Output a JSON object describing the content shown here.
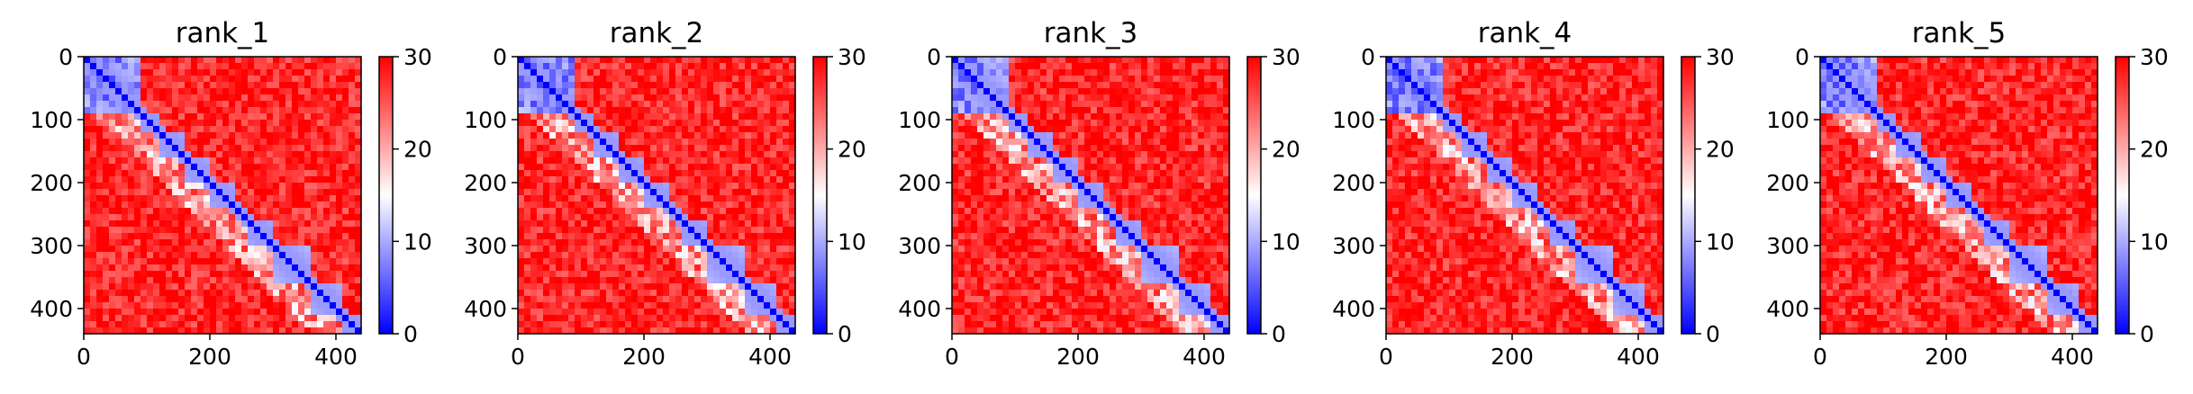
{
  "chart_data": [
    {
      "type": "heatmap",
      "title": "rank_1",
      "xlim": [
        0,
        440
      ],
      "ylim": [
        440,
        0
      ],
      "xticks": [
        "0",
        "200",
        "400"
      ],
      "yticks": [
        "0",
        "100",
        "200",
        "300",
        "400"
      ],
      "colorbar": {
        "ticks": [
          "0",
          "10",
          "20",
          "30"
        ],
        "range": [
          0,
          30
        ],
        "colormap": "bwr"
      }
    },
    {
      "type": "heatmap",
      "title": "rank_2",
      "xlim": [
        0,
        440
      ],
      "ylim": [
        440,
        0
      ],
      "xticks": [
        "0",
        "200",
        "400"
      ],
      "yticks": [
        "0",
        "100",
        "200",
        "300",
        "400"
      ],
      "colorbar": {
        "ticks": [
          "0",
          "10",
          "20",
          "30"
        ],
        "range": [
          0,
          30
        ],
        "colormap": "bwr"
      }
    },
    {
      "type": "heatmap",
      "title": "rank_3",
      "xlim": [
        0,
        440
      ],
      "ylim": [
        440,
        0
      ],
      "xticks": [
        "0",
        "200",
        "400"
      ],
      "yticks": [
        "0",
        "100",
        "200",
        "300",
        "400"
      ],
      "colorbar": {
        "ticks": [
          "0",
          "10",
          "20",
          "30"
        ],
        "range": [
          0,
          30
        ],
        "colormap": "bwr"
      }
    },
    {
      "type": "heatmap",
      "title": "rank_4",
      "xlim": [
        0,
        440
      ],
      "ylim": [
        440,
        0
      ],
      "xticks": [
        "0",
        "200",
        "400"
      ],
      "yticks": [
        "0",
        "100",
        "200",
        "300",
        "400"
      ],
      "colorbar": {
        "ticks": [
          "0",
          "10",
          "20",
          "30"
        ],
        "range": [
          0,
          30
        ],
        "colormap": "bwr"
      }
    },
    {
      "type": "heatmap",
      "title": "rank_5",
      "xlim": [
        0,
        440
      ],
      "ylim": [
        440,
        0
      ],
      "xticks": [
        "0",
        "200",
        "400"
      ],
      "yticks": [
        "0",
        "100",
        "200",
        "300",
        "400"
      ],
      "colorbar": {
        "ticks": [
          "0",
          "10",
          "20",
          "30"
        ],
        "range": [
          0,
          30
        ],
        "colormap": "bwr"
      }
    }
  ],
  "colors": {
    "low": "#0000ff",
    "mid": "#ffffff",
    "high": "#ff0000"
  }
}
